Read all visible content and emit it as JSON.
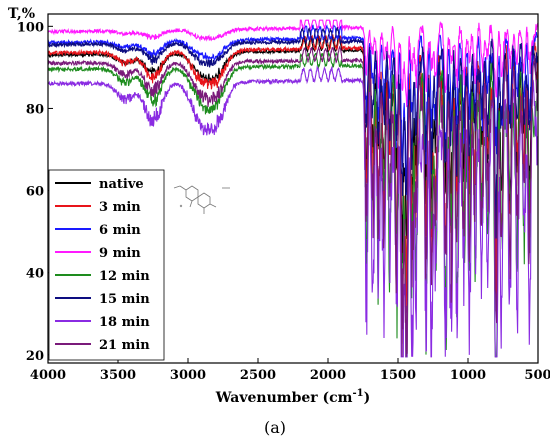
{
  "chart_data": {
    "type": "line",
    "title": "",
    "ylabel": "T,%",
    "xlabel_main": "Wavenumber (cm",
    "xlabel_sup": "-1",
    "xlabel_tail": ")",
    "xlim": [
      4000,
      500
    ],
    "ylim": [
      18,
      103
    ],
    "x_ticks": [
      4000,
      3500,
      3000,
      2500,
      2000,
      1500,
      1000,
      500
    ],
    "y_ticks": [
      20,
      40,
      60,
      80,
      100
    ],
    "grid": false,
    "legend_position": "bottom-left",
    "series": [
      {
        "name": "native",
        "color": "#000000",
        "base": 93.0,
        "amp": 0.7
      },
      {
        "name": "3 min",
        "color": "#e8141a",
        "base": 93.5,
        "amp": 0.9
      },
      {
        "name": "6 min",
        "color": "#1a1aff",
        "base": 96.0,
        "amp": 0.45
      },
      {
        "name": "9 min",
        "color": "#ff1aff",
        "base": 98.7,
        "amp": 0.25
      },
      {
        "name": "12 min",
        "color": "#1e8c1e",
        "base": 89.5,
        "amp": 1.1
      },
      {
        "name": "15 min",
        "color": "#0d0d80",
        "base": 95.5,
        "amp": 0.55
      },
      {
        "name": "18 min",
        "color": "#8a2be2",
        "base": 86.0,
        "amp": 1.3
      },
      {
        "name": "21 min",
        "color": "#7a1a7a",
        "base": 91.0,
        "amp": 1.0
      }
    ],
    "bands": [
      {
        "x": 3450,
        "depth": 3.0
      },
      {
        "x": 3250,
        "depth": 7.0
      },
      {
        "x": 2930,
        "depth": 5.0
      },
      {
        "x": 2850,
        "depth": 4.5
      },
      {
        "x": 2780,
        "depth": 5.0
      },
      {
        "x": 1725,
        "depth": 40.0
      },
      {
        "x": 1680,
        "depth": 25.0
      },
      {
        "x": 1640,
        "depth": 35.0
      },
      {
        "x": 1600,
        "depth": 30.0
      },
      {
        "x": 1560,
        "depth": 28.0
      },
      {
        "x": 1510,
        "depth": 42.0
      },
      {
        "x": 1470,
        "depth": 55.0
      },
      {
        "x": 1440,
        "depth": 65.0
      },
      {
        "x": 1400,
        "depth": 40.0
      },
      {
        "x": 1370,
        "depth": 38.0
      },
      {
        "x": 1300,
        "depth": 45.0
      },
      {
        "x": 1260,
        "depth": 40.0
      },
      {
        "x": 1230,
        "depth": 35.0
      },
      {
        "x": 1160,
        "depth": 48.0
      },
      {
        "x": 1120,
        "depth": 38.0
      },
      {
        "x": 1080,
        "depth": 42.0
      },
      {
        "x": 1030,
        "depth": 36.0
      },
      {
        "x": 990,
        "depth": 34.0
      },
      {
        "x": 950,
        "depth": 32.0
      },
      {
        "x": 900,
        "depth": 30.0
      },
      {
        "x": 860,
        "depth": 28.0
      },
      {
        "x": 800,
        "depth": 62.0
      },
      {
        "x": 760,
        "depth": 38.0
      },
      {
        "x": 700,
        "depth": 36.0
      },
      {
        "x": 650,
        "depth": 30.0
      },
      {
        "x": 600,
        "depth": 28.0
      },
      {
        "x": 560,
        "depth": 35.0
      }
    ]
  },
  "caption": "(a)"
}
